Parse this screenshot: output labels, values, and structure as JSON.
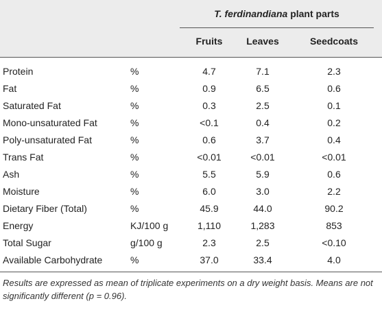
{
  "table": {
    "header": {
      "title_italic": "T. ferdinandiana",
      "title_rest": " plant parts",
      "columns": [
        "Fruits",
        "Leaves",
        "Seedcoats"
      ]
    },
    "rows": [
      [
        "Protein",
        "%",
        "4.7",
        "7.1",
        "2.3"
      ],
      [
        "Fat",
        "%",
        "0.9",
        "6.5",
        "0.6"
      ],
      [
        "Saturated Fat",
        "%",
        "0.3",
        "2.5",
        "0.1"
      ],
      [
        "Mono-unsaturated Fat",
        "%",
        "<0.1",
        "0.4",
        "0.2"
      ],
      [
        "Poly-unsaturated Fat",
        "%",
        "0.6",
        "3.7",
        "0.4"
      ],
      [
        "Trans Fat",
        "%",
        "<0.01",
        "<0.01",
        "<0.01"
      ],
      [
        "Ash",
        "%",
        "5.5",
        "5.9",
        "0.6"
      ],
      [
        "Moisture",
        "%",
        "6.0",
        "3.0",
        "2.2"
      ],
      [
        "Dietary Fiber (Total)",
        "%",
        "45.9",
        "44.0",
        "90.2"
      ],
      [
        "Energy",
        "KJ/100 g",
        "1,110",
        "1,283",
        "853"
      ],
      [
        "Total Sugar",
        "g/100 g",
        "2.3",
        "2.5",
        "<0.10"
      ],
      [
        "Available Carbohydrate",
        "%",
        "37.0",
        "33.4",
        "4.0"
      ]
    ],
    "footnote": "Results are expressed as mean of triplicate experiments on a dry weight basis. Means are not significantly different (p = 0.96)."
  }
}
